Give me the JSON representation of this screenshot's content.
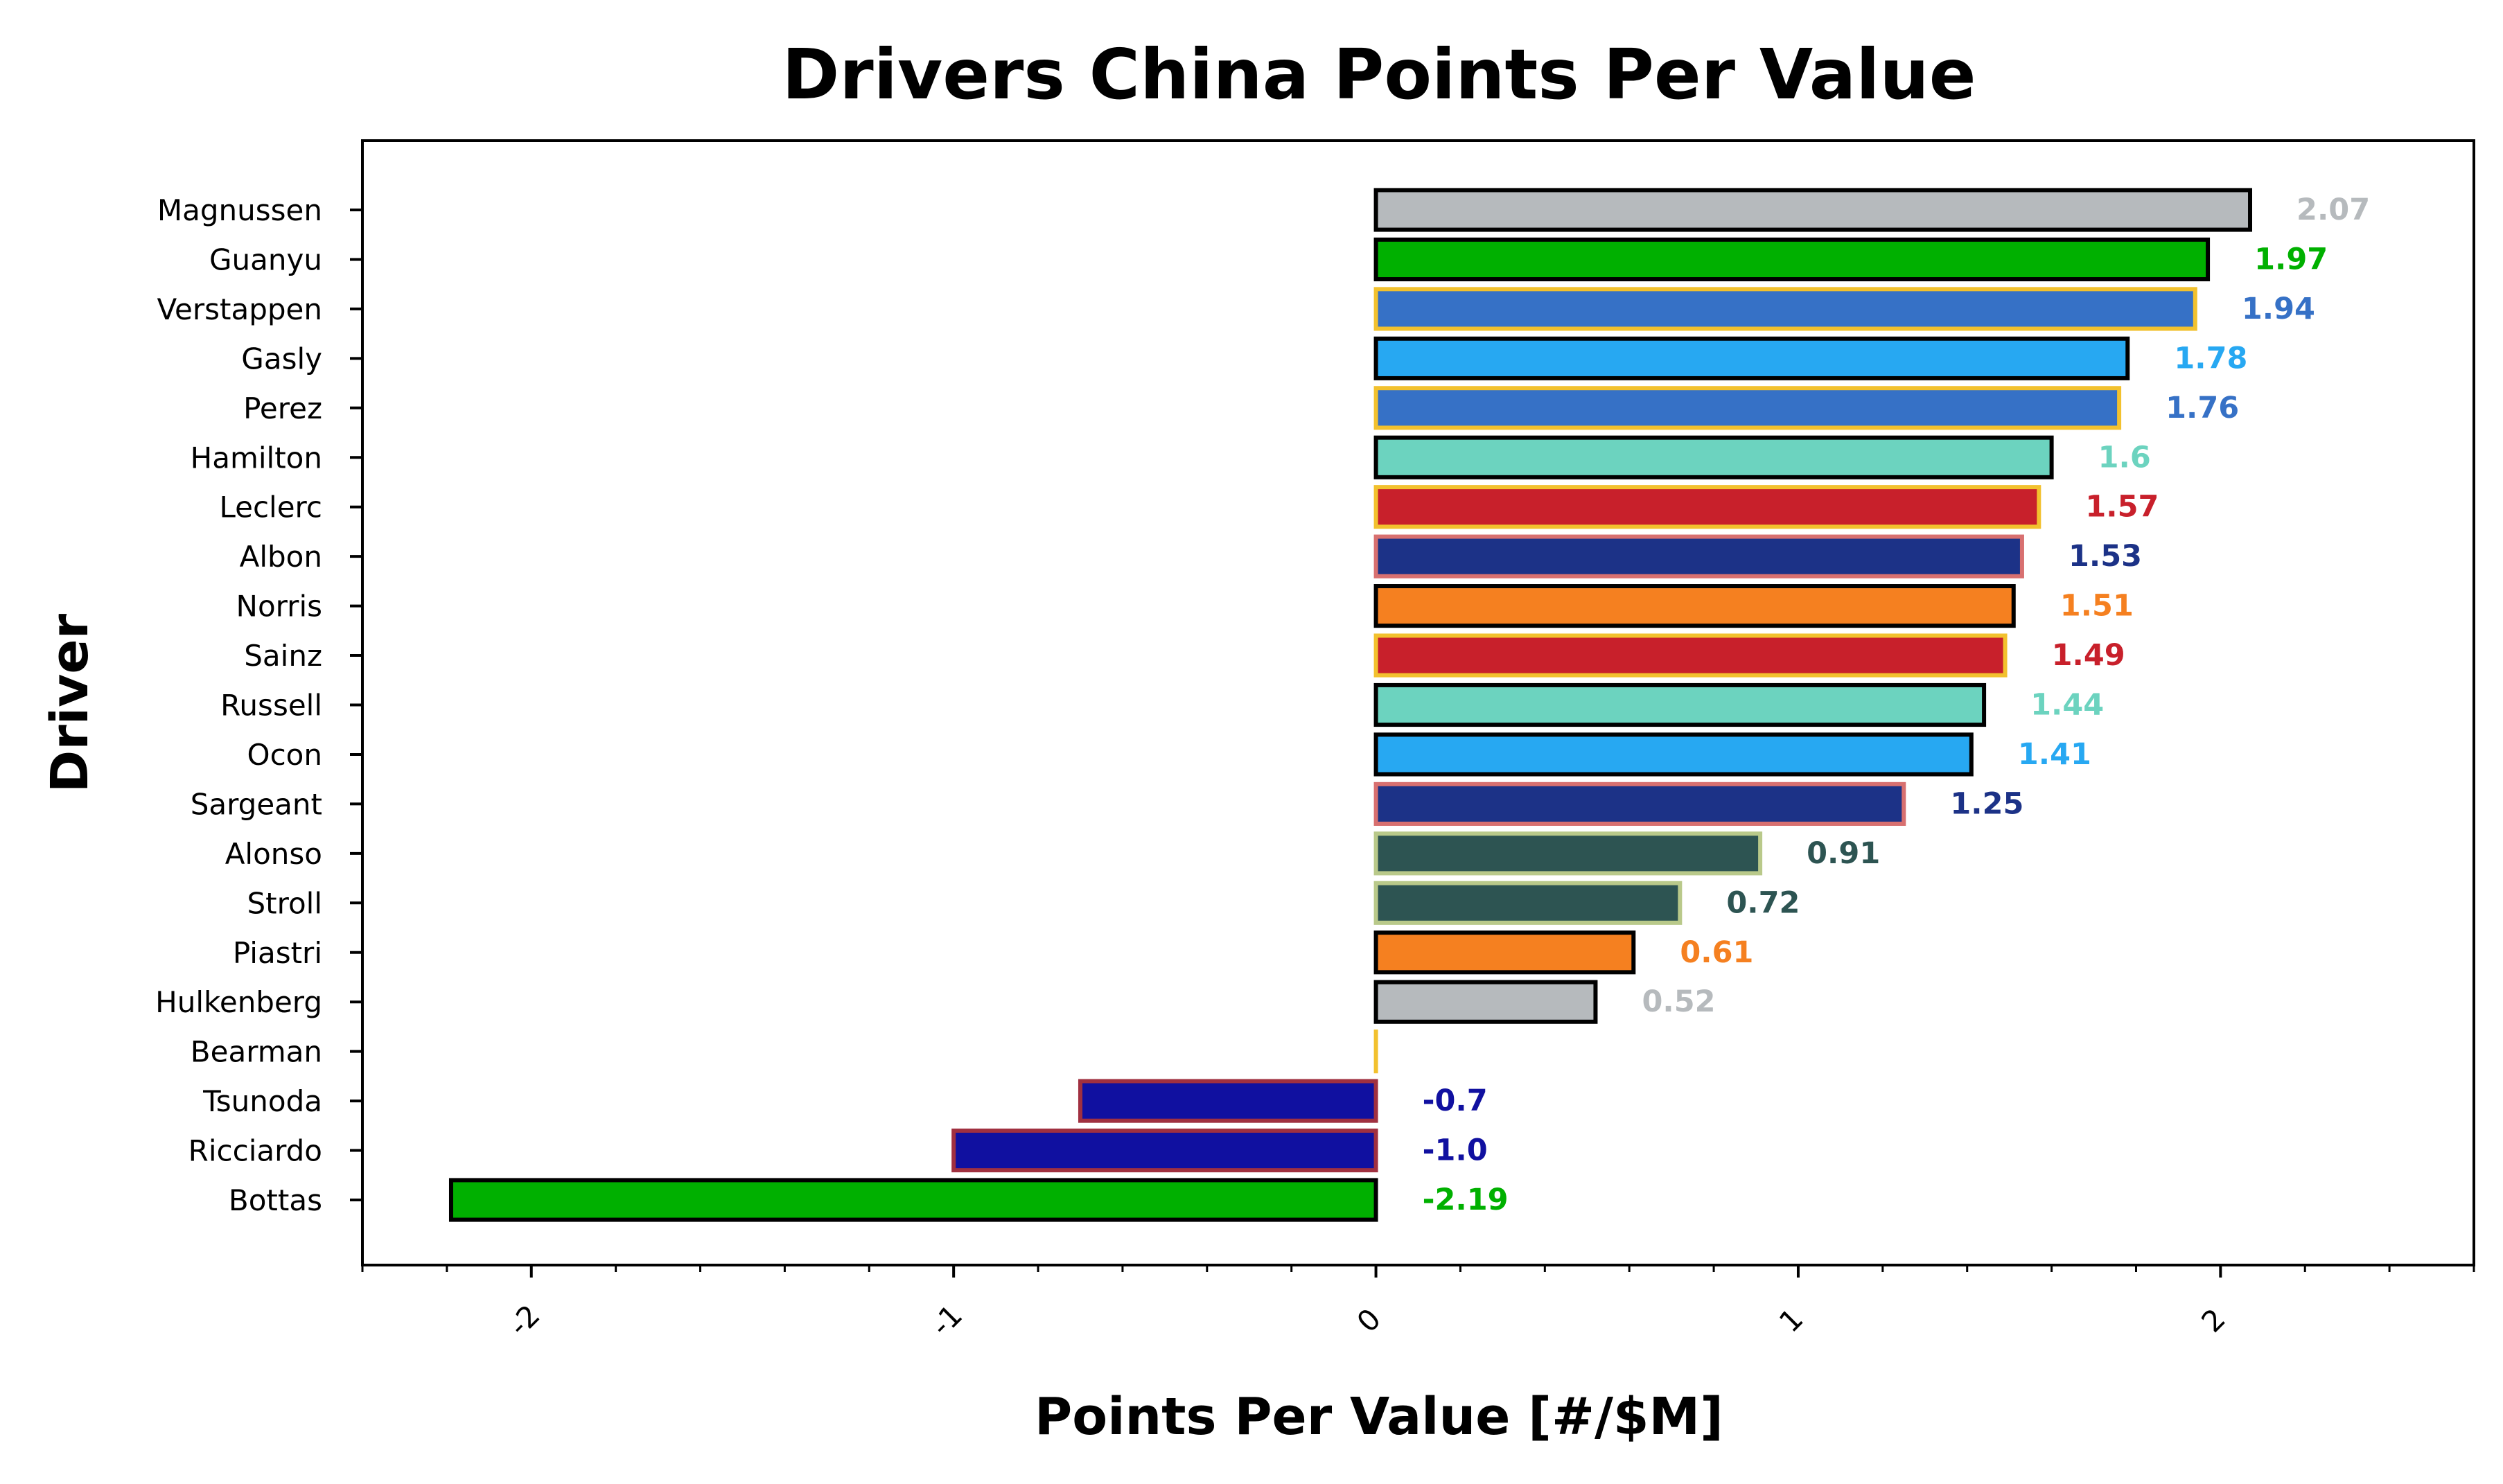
{
  "chart_data": {
    "type": "bar",
    "orientation": "horizontal",
    "title": "Drivers China Points Per Value",
    "xlabel": "Points Per Value [#/$M]",
    "ylabel": "Driver",
    "xlim": [
      -2.4,
      2.6
    ],
    "xticks": [
      "-2",
      "-1",
      "0",
      "1",
      "2"
    ],
    "xtick_values": [
      -2,
      -1,
      0,
      1,
      2
    ],
    "grid": false,
    "legend": "none",
    "categories": [
      "Magnussen",
      "Guanyu",
      "Verstappen",
      "Gasly",
      "Perez",
      "Hamilton",
      "Leclerc",
      "Albon",
      "Norris",
      "Sainz",
      "Russell",
      "Ocon",
      "Sargeant",
      "Alonso",
      "Stroll",
      "Piastri",
      "Hulkenberg",
      "Bearman",
      "Tsunoda",
      "Ricciardo",
      "Bottas"
    ],
    "values": [
      2.07,
      1.97,
      1.94,
      1.78,
      1.76,
      1.6,
      1.57,
      1.53,
      1.51,
      1.49,
      1.44,
      1.41,
      1.25,
      0.91,
      0.72,
      0.61,
      0.52,
      0.0,
      -0.7,
      -1.0,
      -2.19
    ],
    "labels": [
      "2.07",
      "1.97",
      "1.94",
      "1.78",
      "1.76",
      "1.6",
      "1.57",
      "1.53",
      "1.51",
      "1.49",
      "1.44",
      "1.41",
      "1.25",
      "0.91",
      "0.72",
      "0.61",
      "0.52",
      "",
      "-0.7",
      "-1.0",
      "-2.19"
    ],
    "fill_colors": [
      "#B6BABD",
      "#00B000",
      "#3671C6",
      "#27A8F2",
      "#3671C6",
      "#6CD3BF",
      "#C8202B",
      "#1C3287",
      "#F58020",
      "#C8202B",
      "#6CD3BF",
      "#27A8F2",
      "#1C3287",
      "#2D5452",
      "#2D5452",
      "#F58020",
      "#B6BABD",
      "#E8C11C",
      "#1010A0",
      "#1010A0",
      "#00B000"
    ],
    "edge_colors": [
      "#000000",
      "#000000",
      "#F2C12E",
      "#000000",
      "#F2C12E",
      "#000000",
      "#F2C12E",
      "#D87070",
      "#000000",
      "#F2C12E",
      "#000000",
      "#000000",
      "#D87070",
      "#B9C98A",
      "#B9C98A",
      "#000000",
      "#000000",
      "#F2C12E",
      "#A03040",
      "#A03040",
      "#000000"
    ],
    "label_colors": [
      "#B6BABD",
      "#00B000",
      "#3671C6",
      "#27A8F2",
      "#3671C6",
      "#6CD3BF",
      "#C8202B",
      "#1C3287",
      "#F58020",
      "#C8202B",
      "#6CD3BF",
      "#27A8F2",
      "#1C3287",
      "#2D5452",
      "#2D5452",
      "#F58020",
      "#B6BABD",
      "#E8C11C",
      "#1010A0",
      "#1010A0",
      "#00B000"
    ]
  }
}
